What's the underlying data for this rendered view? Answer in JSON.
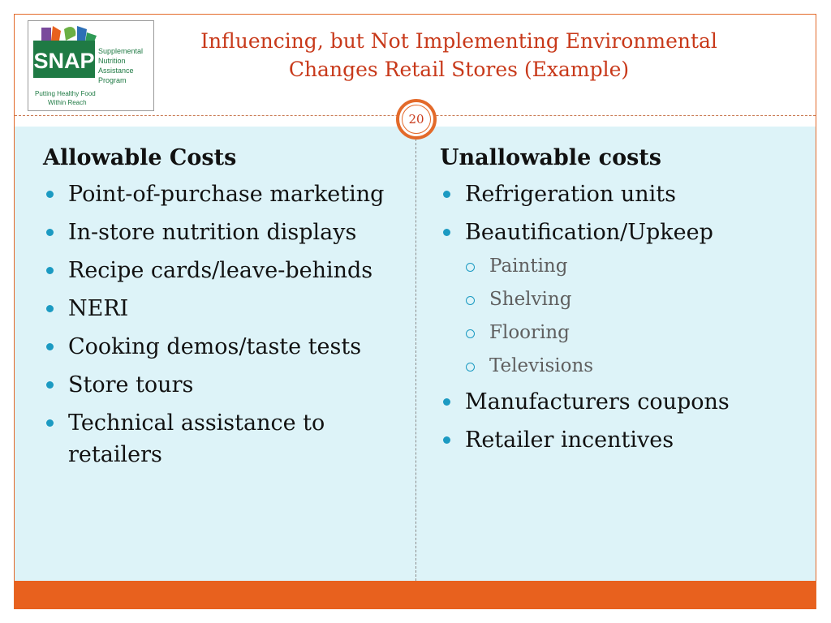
{
  "logo": {
    "name": "SNAP",
    "lines": [
      "Supplemental",
      "Nutrition",
      "Assistance",
      "Program"
    ],
    "tagline_1": "Putting Healthy Food",
    "tagline_2": "Within Reach",
    "colors": {
      "green": "#1f7a44",
      "orange": "#e8611e",
      "purple": "#7a4a9c",
      "blue": "#2d6fb6"
    }
  },
  "slide": {
    "title_line1": "Influencing, but Not Implementing  Environmental",
    "title_line2": "Changes  Retail Stores (Example)",
    "number": "20"
  },
  "left": {
    "heading": "Allowable Costs",
    "items": [
      "Point-of-purchase marketing",
      "In-store nutrition displays",
      "Recipe cards/leave-behinds",
      "NERI",
      "Cooking demos/taste tests",
      "Store tours",
      "Technical assistance to retailers"
    ]
  },
  "right": {
    "heading": "Unallowable costs",
    "items": [
      "Refrigeration units",
      "Beautification/Upkeep",
      "Manufacturers coupons",
      "Retailer incentives"
    ],
    "subitems": [
      "Painting",
      "Shelving",
      "Flooring",
      "Televisions"
    ]
  },
  "theme": {
    "accent": "#e8611e",
    "title": "#c8391a",
    "content_bg": "#ddf3f8",
    "bullet": "#1b9ac2"
  }
}
